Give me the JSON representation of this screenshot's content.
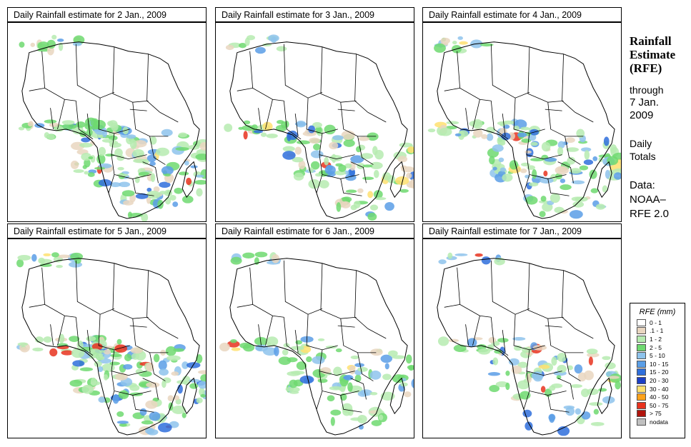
{
  "panels": [
    {
      "title": "Daily Rainfall estimate for  2 Jan., 2009",
      "rain_intensity": 1.0,
      "seed": 11
    },
    {
      "title": "Daily Rainfall estimate for  3 Jan., 2009",
      "rain_intensity": 0.7,
      "seed": 23
    },
    {
      "title": "Daily Rainfall estimate for  4 Jan., 2009",
      "rain_intensity": 0.85,
      "seed": 37
    },
    {
      "title": "Daily Rainfall estimate for  5 Jan., 2009",
      "rain_intensity": 1.0,
      "seed": 41
    },
    {
      "title": "Daily Rainfall estimate for  6 Jan., 2009",
      "rain_intensity": 0.6,
      "seed": 53
    },
    {
      "title": "Daily Rainfall estimate for  7 Jan., 2009",
      "rain_intensity": 0.55,
      "seed": 67
    }
  ],
  "side": {
    "title_lines": [
      "Rainfall",
      "Estimate",
      "(RFE)"
    ],
    "through": [
      "through",
      "7 Jan.",
      "2009"
    ],
    "totals": [
      "Daily",
      "Totals"
    ],
    "source": [
      "Data:",
      "NOAA–",
      "RFE 2.0"
    ]
  },
  "legend": {
    "title": "RFE (mm)",
    "items": [
      {
        "label": "0 - 1",
        "color": "#ffffff"
      },
      {
        "label": ".1 - 1",
        "color": "#e9d6c0"
      },
      {
        "label": "1 - 2",
        "color": "#b6ebb0"
      },
      {
        "label": "2 - 5",
        "color": "#6fd970"
      },
      {
        "label": "5 - 10",
        "color": "#8ec3ec"
      },
      {
        "label": "10 - 15",
        "color": "#5a9ee6"
      },
      {
        "label": "15 - 20",
        "color": "#2f6fdc"
      },
      {
        "label": "20 - 30",
        "color": "#1c3fc6"
      },
      {
        "label": "30 - 40",
        "color": "#ffe070"
      },
      {
        "label": "40 - 50",
        "color": "#ffa21a"
      },
      {
        "label": "50 - 75",
        "color": "#e8321e"
      },
      {
        "label": "> 75",
        "color": "#b0140c"
      },
      {
        "label": "nodata",
        "color": "#c0c0c0"
      }
    ]
  }
}
